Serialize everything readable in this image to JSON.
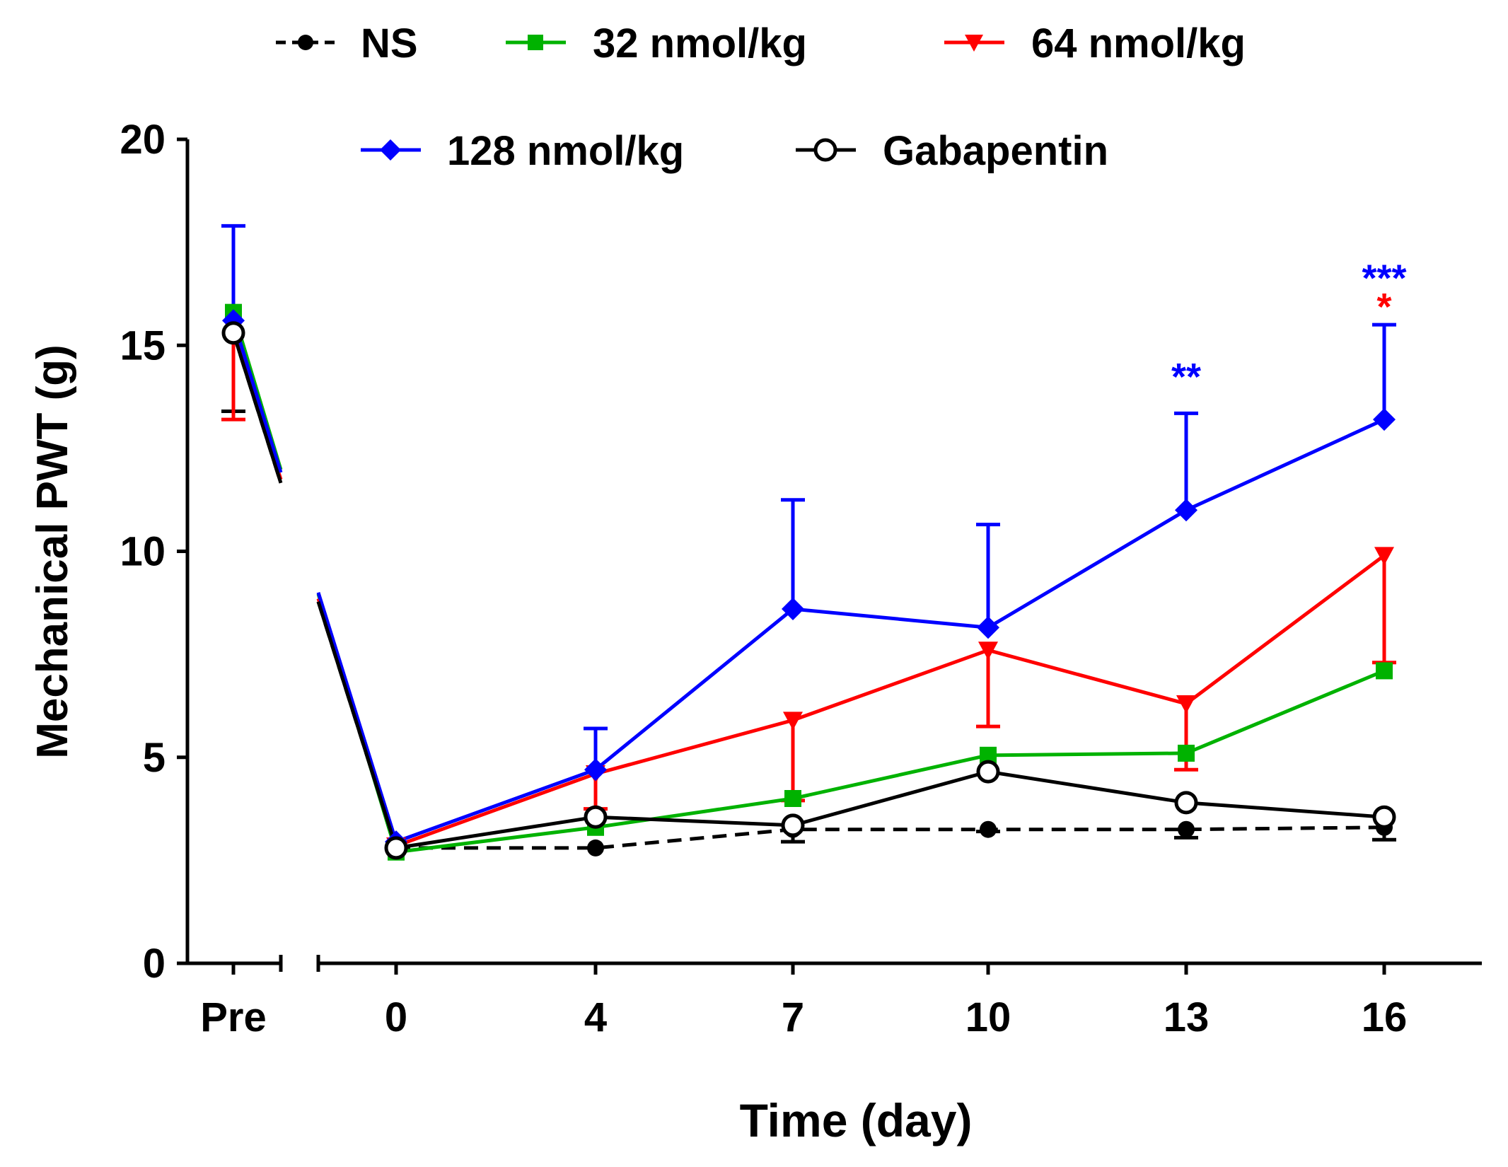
{
  "chart_data": {
    "type": "line",
    "title": "",
    "xlabel": "Time (day)",
    "ylabel": "Mechanical PWT (g)",
    "ylim": [
      0,
      20
    ],
    "yticks": [
      "0",
      "5",
      "10",
      "15",
      "20"
    ],
    "categories": [
      "Pre",
      "0",
      "4",
      "7",
      "10",
      "13",
      "16"
    ],
    "grid": false,
    "axis_break": "between Pre and 0",
    "legend_position": "top",
    "series": [
      {
        "name": "NS",
        "color": "#000000",
        "marker": "circle-filled",
        "dash": true,
        "values": [
          15.3,
          2.8,
          2.8,
          3.25,
          3.25,
          3.25,
          3.3
        ],
        "err_low": [
          13.4,
          null,
          null,
          2.95,
          3.2,
          3.05,
          3.0
        ],
        "err_high": [
          null,
          null,
          null,
          null,
          null,
          null,
          null
        ]
      },
      {
        "name": "32 nmol/kg",
        "color": "#00b200",
        "marker": "square",
        "dash": false,
        "values": [
          15.8,
          2.7,
          3.3,
          4.0,
          5.05,
          5.1,
          7.1
        ],
        "err_low": [
          null,
          null,
          null,
          null,
          null,
          null,
          null
        ],
        "err_high": [
          null,
          null,
          null,
          null,
          null,
          null,
          null
        ]
      },
      {
        "name": "64 nmol/kg",
        "color": "#ff0000",
        "marker": "triangle-down",
        "dash": false,
        "values": [
          15.4,
          2.85,
          4.6,
          5.9,
          7.6,
          6.3,
          9.9
        ],
        "err_low": [
          13.2,
          null,
          3.75,
          3.95,
          5.75,
          4.7,
          7.3
        ],
        "err_high": [
          null,
          null,
          null,
          null,
          null,
          null,
          null
        ]
      },
      {
        "name": "128 nmol/kg",
        "color": "#0000ff",
        "marker": "diamond",
        "dash": false,
        "values": [
          15.6,
          2.95,
          4.7,
          8.6,
          8.15,
          11.0,
          13.2
        ],
        "err_low": [
          null,
          null,
          null,
          null,
          null,
          null,
          null
        ],
        "err_high": [
          17.9,
          null,
          5.7,
          11.25,
          10.65,
          13.35,
          15.5
        ]
      },
      {
        "name": "Gabapentin",
        "color": "#000000",
        "marker": "circle-open",
        "dash": false,
        "values": [
          15.3,
          2.8,
          3.55,
          3.35,
          4.65,
          3.9,
          3.55
        ],
        "err_low": [
          null,
          null,
          null,
          null,
          null,
          null,
          null
        ],
        "err_high": [
          null,
          null,
          null,
          null,
          null,
          null,
          null
        ]
      }
    ],
    "annotations": [
      {
        "text": "**",
        "category": "13",
        "color": "#0000ff",
        "y": 14.4
      },
      {
        "text": "***",
        "category": "16",
        "color": "#0000ff",
        "y": 16.8
      },
      {
        "text": "*",
        "category": "16",
        "color": "#ff0000",
        "y": 16.1
      }
    ]
  }
}
